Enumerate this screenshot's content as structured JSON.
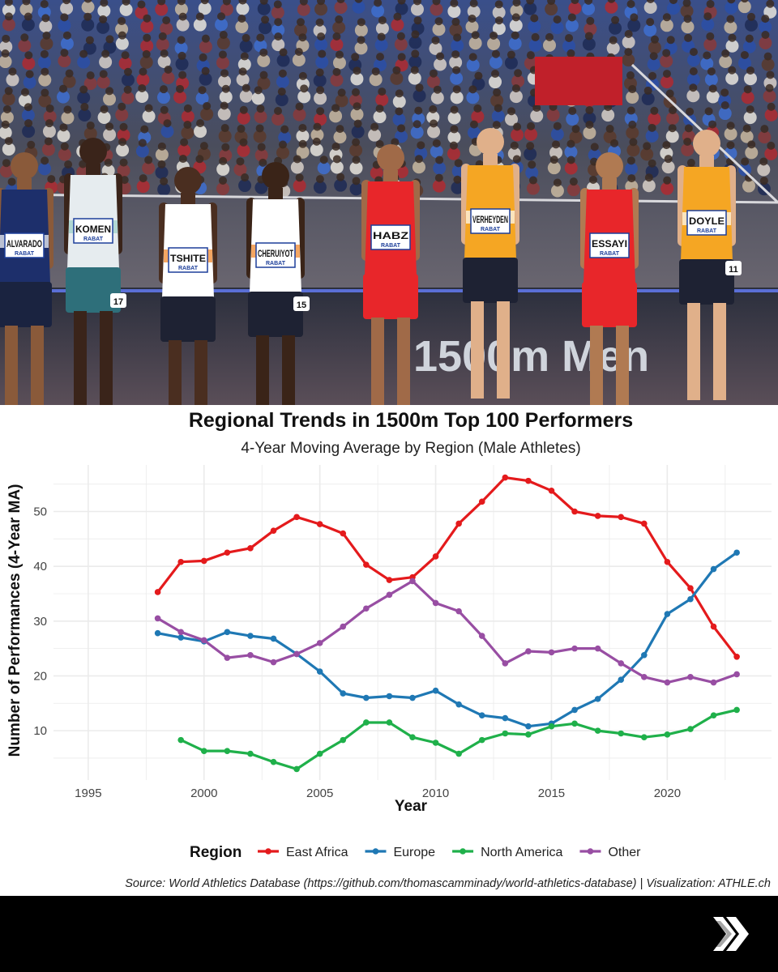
{
  "photo": {
    "board_text": "1500m Men",
    "bibs": [
      "ALVARADO",
      "KOMEN",
      "TSHITE",
      "CHERUIYOT",
      "HABZ",
      "VERHEYDEN",
      "ESSAYI",
      "DOYLE"
    ],
    "hip_numbers": [
      "17",
      "15",
      "11"
    ],
    "sponsor": "RABAT"
  },
  "chart_data": {
    "type": "line",
    "title": "Regional Trends in 1500m Top 100 Performers",
    "subtitle": "4-Year Moving Average by Region (Male Athletes)",
    "xlabel": "Year",
    "ylabel": "Number of Performances (4-Year MA)",
    "xlim": [
      1993.5,
      2024.5
    ],
    "ylim": [
      1.0,
      58.5
    ],
    "xticks": [
      1995,
      2000,
      2005,
      2010,
      2015,
      2020
    ],
    "yticks": [
      10,
      20,
      30,
      40,
      50
    ],
    "grid": true,
    "legend_position": "bottom",
    "legend_title": "Region",
    "caption": "Source: World Athletics Database (https://github.com/thomascamminady/world-athletics-database) | Visualization: ATHLE.ch",
    "series": [
      {
        "name": "East Africa",
        "color": "#e41a1c",
        "x": [
          1998,
          1999,
          2000,
          2001,
          2002,
          2003,
          2004,
          2005,
          2006,
          2007,
          2008,
          2009,
          2010,
          2011,
          2012,
          2013,
          2014,
          2015,
          2016,
          2017,
          2018,
          2019,
          2020,
          2021,
          2022,
          2023
        ],
        "values": [
          35.3,
          40.8,
          41.0,
          42.5,
          43.3,
          46.5,
          49.0,
          47.7,
          46.0,
          40.3,
          37.5,
          38.0,
          41.8,
          47.8,
          51.8,
          56.2,
          55.6,
          53.8,
          50.0,
          49.2,
          49.0,
          47.8,
          40.8,
          36.0,
          29.0,
          23.5
        ]
      },
      {
        "name": "Europe",
        "color": "#1f78b4",
        "x": [
          1998,
          1999,
          2000,
          2001,
          2002,
          2003,
          2004,
          2005,
          2006,
          2007,
          2008,
          2009,
          2010,
          2011,
          2012,
          2013,
          2014,
          2015,
          2016,
          2017,
          2018,
          2019,
          2020,
          2021,
          2022,
          2023
        ],
        "values": [
          27.8,
          27.0,
          26.3,
          28.0,
          27.3,
          26.8,
          24.0,
          20.8,
          16.8,
          16.0,
          16.3,
          16.0,
          17.3,
          14.8,
          12.8,
          12.3,
          10.8,
          11.3,
          13.8,
          15.8,
          19.3,
          23.8,
          31.3,
          34.0,
          39.5,
          42.5
        ]
      },
      {
        "name": "North America",
        "color": "#1fb04a",
        "x": [
          1999,
          2000,
          2001,
          2002,
          2003,
          2004,
          2005,
          2006,
          2007,
          2008,
          2009,
          2010,
          2011,
          2012,
          2013,
          2014,
          2015,
          2016,
          2017,
          2018,
          2019,
          2020,
          2021,
          2022,
          2023
        ],
        "values": [
          8.3,
          6.3,
          6.3,
          5.8,
          4.3,
          3.0,
          5.8,
          8.3,
          11.5,
          11.5,
          8.8,
          7.8,
          5.8,
          8.3,
          9.5,
          9.3,
          10.8,
          11.3,
          10.0,
          9.5,
          8.8,
          9.3,
          10.3,
          12.8,
          13.8
        ]
      },
      {
        "name": "Other",
        "color": "#984ea3",
        "x": [
          1998,
          1999,
          2000,
          2001,
          2002,
          2003,
          2004,
          2005,
          2006,
          2007,
          2008,
          2009,
          2010,
          2011,
          2012,
          2013,
          2014,
          2015,
          2016,
          2017,
          2018,
          2019,
          2020,
          2021,
          2022,
          2023
        ],
        "values": [
          30.5,
          28.0,
          26.5,
          23.3,
          23.8,
          22.5,
          24.0,
          26.0,
          29.0,
          32.3,
          34.8,
          37.3,
          33.3,
          31.8,
          27.3,
          22.3,
          24.5,
          24.3,
          25.0,
          25.0,
          22.3,
          19.8,
          18.8,
          19.8,
          18.8,
          20.3
        ]
      }
    ]
  },
  "footer": {
    "next_icon": "double-chevron-right-icon"
  }
}
